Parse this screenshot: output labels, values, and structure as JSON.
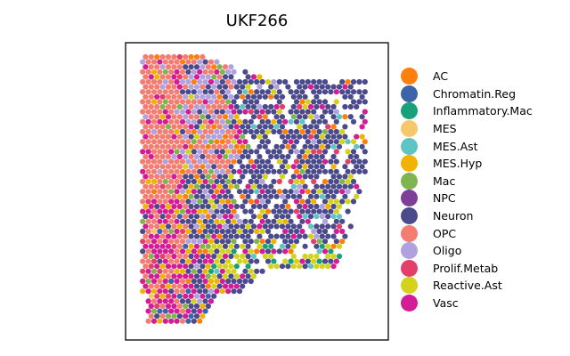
{
  "chart_data": {
    "type": "scatter",
    "title": "UKF266",
    "xlabel": "",
    "ylabel": "",
    "grid": false,
    "axis_ticks": false,
    "legend_placement": "right",
    "marker": "hexagon spot",
    "categories": [
      {
        "name": "AC",
        "color": "#ff7f0e"
      },
      {
        "name": "Chromatin.Reg",
        "color": "#3d63a8"
      },
      {
        "name": "Inflammatory.Mac",
        "color": "#17a07a"
      },
      {
        "name": "MES",
        "color": "#f5c96b"
      },
      {
        "name": "MES.Ast",
        "color": "#5fc4c4"
      },
      {
        "name": "MES.Hyp",
        "color": "#f0b400"
      },
      {
        "name": "Mac",
        "color": "#7fb54f"
      },
      {
        "name": "NPC",
        "color": "#7d3f98"
      },
      {
        "name": "Neuron",
        "color": "#4a4a8c"
      },
      {
        "name": "OPC",
        "color": "#f47d72"
      },
      {
        "name": "Oligo",
        "color": "#b0a1df"
      },
      {
        "name": "Prolif.Metab",
        "color": "#e23f6a"
      },
      {
        "name": "Reactive.Ast",
        "color": "#d3d31c"
      },
      {
        "name": "Vasc",
        "color": "#d41c96"
      }
    ]
  }
}
